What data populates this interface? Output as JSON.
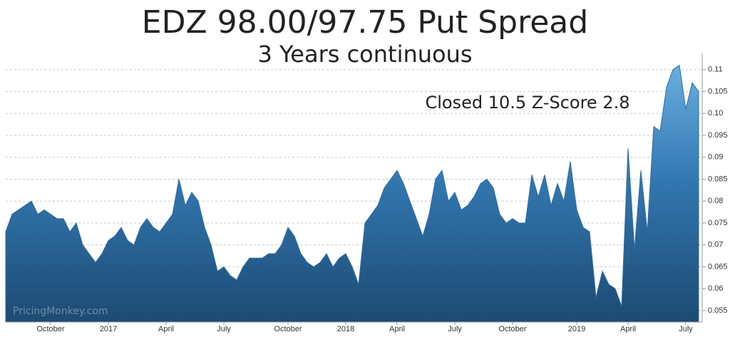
{
  "chart_data": {
    "type": "area",
    "title": "EDZ 98.00/97.75 Put Spread",
    "subtitle": "3 Years continuous",
    "annotation": "Closed 10.5 Z-Score 2.8",
    "watermark": "PricingMonkey.com",
    "color": "#2e6da4",
    "grid": true,
    "ylim": [
      0.0524,
      0.1137
    ],
    "yticks": [
      0.055,
      0.06,
      0.065,
      0.07,
      0.075,
      0.08,
      0.085,
      0.09,
      0.095,
      {
        "value": 0.1,
        "label": "0.10"
      },
      0.105,
      0.11
    ],
    "categories": [
      null,
      null,
      null,
      null,
      null,
      null,
      null,
      "October",
      null,
      null,
      null,
      null,
      null,
      null,
      null,
      null,
      "2017",
      null,
      null,
      null,
      null,
      null,
      null,
      null,
      null,
      "April",
      null,
      null,
      null,
      null,
      null,
      null,
      null,
      null,
      "July",
      null,
      null,
      null,
      null,
      null,
      null,
      null,
      null,
      null,
      "October",
      null,
      null,
      null,
      null,
      null,
      null,
      null,
      null,
      "2018",
      null,
      null,
      null,
      null,
      null,
      null,
      null,
      "April",
      null,
      null,
      null,
      null,
      null,
      null,
      null,
      null,
      "July",
      null,
      null,
      null,
      null,
      null,
      null,
      null,
      null,
      "October",
      null,
      null,
      null,
      null,
      null,
      null,
      null,
      null,
      null,
      "2019",
      null,
      null,
      null,
      null,
      null,
      null,
      null,
      "April",
      null,
      null,
      null,
      null,
      null,
      null,
      null,
      null,
      "July",
      null,
      null
    ],
    "values": [
      0.073,
      0.077,
      0.078,
      0.079,
      0.08,
      0.077,
      0.078,
      0.077,
      0.076,
      0.076,
      0.073,
      0.075,
      0.07,
      0.068,
      0.066,
      0.068,
      0.071,
      0.072,
      0.074,
      0.071,
      0.07,
      0.074,
      0.076,
      0.074,
      0.073,
      0.075,
      0.077,
      0.085,
      0.079,
      0.082,
      0.08,
      0.074,
      0.07,
      0.064,
      0.065,
      0.063,
      0.062,
      0.065,
      0.067,
      0.067,
      0.067,
      0.068,
      0.068,
      0.07,
      0.074,
      0.072,
      0.068,
      0.066,
      0.065,
      0.066,
      0.068,
      0.065,
      0.067,
      0.068,
      0.065,
      0.061,
      0.075,
      0.077,
      0.079,
      0.083,
      0.085,
      0.087,
      0.084,
      0.08,
      0.076,
      0.072,
      0.077,
      0.085,
      0.087,
      0.08,
      0.082,
      0.078,
      0.079,
      0.081,
      0.084,
      0.085,
      0.083,
      0.077,
      0.075,
      0.076,
      0.075,
      0.075,
      0.086,
      0.081,
      0.086,
      0.079,
      0.084,
      0.08,
      0.089,
      0.078,
      0.074,
      0.073,
      0.058,
      0.064,
      0.061,
      0.06,
      0.056,
      0.092,
      0.069,
      0.087,
      0.073,
      0.097,
      0.096,
      0.106,
      0.11,
      0.111,
      0.101,
      0.107,
      0.105
    ]
  }
}
